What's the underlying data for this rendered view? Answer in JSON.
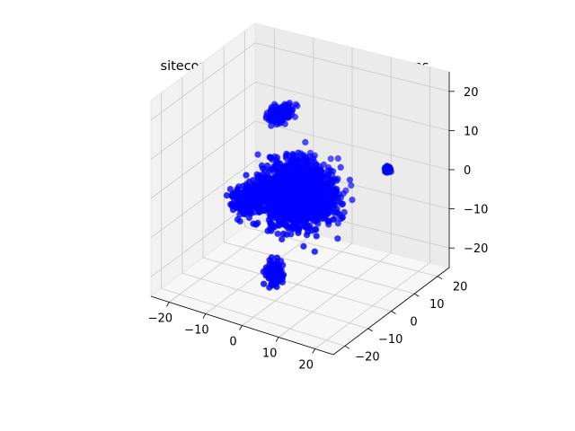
{
  "chart_data": {
    "type": "scatter",
    "projection": "3d",
    "title": "sitecore: - TSNE reduced to 3 dimensions",
    "xlabel": "",
    "ylabel": "",
    "zlabel": "",
    "xlim": [
      -25,
      25
    ],
    "ylim": [
      -25,
      25
    ],
    "zlim": [
      -25,
      25
    ],
    "x_ticks": [
      -20,
      -10,
      0,
      10,
      20
    ],
    "y_ticks": [
      -20,
      -10,
      0,
      10,
      20
    ],
    "z_ticks": [
      -20,
      -10,
      0,
      10,
      20
    ],
    "x_tick_labels": [
      "−20",
      "−10",
      "0",
      "10",
      "20"
    ],
    "y_tick_labels": [
      "−20",
      "−10",
      "0",
      "10",
      "20"
    ],
    "z_tick_labels": [
      "−20",
      "−10",
      "0",
      "10",
      "20"
    ],
    "grid": true,
    "marker_color": "#0000ff",
    "series": [
      {
        "name": "points",
        "approx_count": 2600,
        "clusters": [
          {
            "center": [
              0,
              0,
              -2
            ],
            "spread": [
              8,
              9,
              6
            ]
          },
          {
            "center": [
              5,
              -8,
              5
            ],
            "spread": [
              3,
              3,
              3
            ]
          },
          {
            "center": [
              -8,
              6,
              14
            ],
            "spread": [
              2,
              4,
              1.5
            ]
          },
          {
            "center": [
              -12,
              -2,
              -6
            ],
            "spread": [
              3,
              4,
              3
            ]
          },
          {
            "center": [
              0,
              -10,
              -18
            ],
            "spread": [
              2,
              2,
              3
            ]
          },
          {
            "center": [
              18,
              10,
              5
            ],
            "spread": [
              0.6,
              0.6,
              0.6
            ]
          }
        ]
      }
    ]
  }
}
